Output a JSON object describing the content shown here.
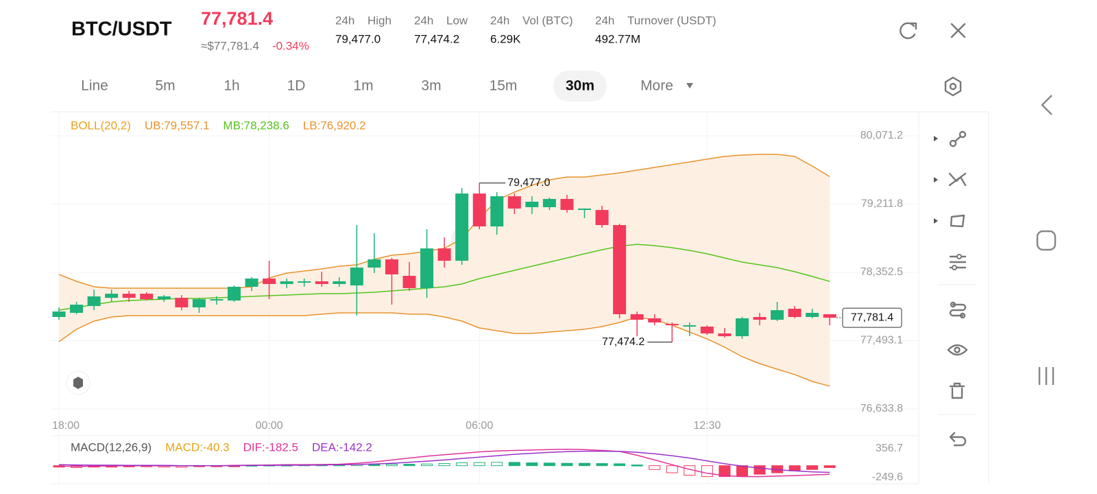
{
  "header": {
    "pair": "BTC/USDT",
    "price": "77,781.4",
    "usd_price": "≈$77,781.4",
    "change": "-0.34%",
    "stats": [
      {
        "period": "24h",
        "name": "High",
        "value": "79,477.0"
      },
      {
        "period": "24h",
        "name": "Low",
        "value": "77,474.2"
      },
      {
        "period": "24h",
        "name": "Vol (BTC)",
        "value": "6.29K"
      },
      {
        "period": "24h",
        "name": "Turnover (USDT)",
        "value": "492.77M"
      }
    ]
  },
  "intervals": [
    {
      "label": "Line",
      "active": false
    },
    {
      "label": "5m",
      "active": false
    },
    {
      "label": "1h",
      "active": false
    },
    {
      "label": "1D",
      "active": false
    },
    {
      "label": "1m",
      "active": false
    },
    {
      "label": "3m",
      "active": false
    },
    {
      "label": "15m",
      "active": false
    },
    {
      "label": "30m",
      "active": true
    },
    {
      "label": "More",
      "active": false
    }
  ],
  "chart_data": [
    {
      "type": "candlestick",
      "indicator": "BOLL(20,2)",
      "watermark": "Gate",
      "up_color": "#1db27a",
      "down_color": "#f23b5c",
      "x": [
        "18:00",
        null,
        null,
        null,
        null,
        null,
        null,
        null,
        null,
        null,
        null,
        null,
        "00:00",
        null,
        null,
        null,
        null,
        null,
        null,
        null,
        null,
        null,
        null,
        null,
        "06:00",
        null,
        null,
        null,
        null,
        null,
        null,
        null,
        null,
        null,
        null,
        null,
        null,
        "12:30",
        null,
        null,
        null,
        null,
        null,
        null,
        null
      ],
      "open": [
        77791,
        77843,
        77929,
        78032,
        78084,
        78084,
        78015,
        78032,
        77912,
        77998,
        77998,
        78171,
        78275,
        78206,
        78223,
        78240,
        78206,
        78188,
        78413,
        78516,
        78309,
        78154,
        78654,
        78499,
        79345,
        78931,
        79311,
        79173,
        79173,
        79277,
        79138,
        79138,
        78948,
        77826,
        77774,
        77704,
        77670,
        77670,
        77584,
        77549,
        77791,
        77756,
        77895,
        77791,
        77826
      ],
      "high": [
        77912,
        77981,
        78136,
        78136,
        78119,
        78102,
        78067,
        78067,
        78032,
        78050,
        78188,
        78292,
        78499,
        78275,
        78275,
        78361,
        78292,
        78948,
        78845,
        78534,
        78482,
        78896,
        78793,
        79414,
        79477,
        79363,
        79345,
        79311,
        79294,
        79328,
        79156,
        79190,
        78966,
        77860,
        77826,
        77722,
        77722,
        77687,
        77653,
        77791,
        77843,
        77981,
        77929,
        77895,
        77826
      ],
      "low": [
        77756,
        77825,
        77877,
        77981,
        77981,
        77998,
        77981,
        77877,
        77843,
        77946,
        77981,
        78119,
        78015,
        78154,
        78171,
        78171,
        78171,
        77808,
        78344,
        77946,
        78119,
        78032,
        78413,
        78447,
        78896,
        78827,
        79086,
        79086,
        79138,
        79104,
        79035,
        78914,
        77774,
        77549,
        77687,
        77474.2,
        77549,
        77566,
        77532,
        77515,
        77687,
        77739,
        77774,
        77774,
        77687
      ],
      "close": [
        77860,
        77946,
        78050,
        78084,
        78032,
        78015,
        78050,
        77912,
        78015,
        78015,
        78171,
        78275,
        78206,
        78240,
        78240,
        78206,
        78240,
        78413,
        78516,
        78327,
        78154,
        78654,
        78499,
        79345,
        78931,
        79311,
        79156,
        79242,
        79277,
        79138,
        79156,
        78948,
        77826,
        77756,
        77722,
        77687,
        77687,
        77584,
        77549,
        77774,
        77756,
        77877,
        77791,
        77843,
        77781.4
      ],
      "series": [
        {
          "name": "UB:79,557.1",
          "color": "#e9922b",
          "values": [
            78327,
            78240,
            78171,
            78154,
            78154,
            78154,
            78154,
            78154,
            78154,
            78154,
            78154,
            78171,
            78283,
            78344,
            78370,
            78396,
            78430,
            78447,
            78517,
            78568,
            78586,
            78620,
            78655,
            78776,
            79035,
            79259,
            79363,
            79449,
            79518,
            79553,
            79553,
            79579,
            79605,
            79639,
            79674,
            79708,
            79743,
            79778,
            79812,
            79829,
            79838,
            79838,
            79812,
            79691,
            79557.1
          ]
        },
        {
          "name": "MB:78,238.6",
          "color": "#52c41a",
          "values": [
            77877,
            77912,
            77946,
            77981,
            77998,
            78007,
            78015,
            78024,
            78024,
            78033,
            78041,
            78050,
            78059,
            78067,
            78076,
            78085,
            78085,
            78093,
            78102,
            78119,
            78136,
            78154,
            78171,
            78206,
            78275,
            78326,
            78378,
            78430,
            78482,
            78534,
            78586,
            78637,
            78681,
            78706,
            78689,
            78663,
            78629,
            78586,
            78534,
            78482,
            78447,
            78413,
            78361,
            78301,
            78238.6
          ]
        },
        {
          "name": "LB:76,920.2",
          "color": "#e9922b",
          "values": [
            77480,
            77636,
            77739,
            77791,
            77808,
            77808,
            77808,
            77808,
            77808,
            77808,
            77808,
            77808,
            77808,
            77808,
            77808,
            77826,
            77843,
            77843,
            77843,
            77843,
            77826,
            77826,
            77791,
            77739,
            77653,
            77618,
            77584,
            77584,
            77601,
            77618,
            77636,
            77670,
            77722,
            77791,
            77756,
            77687,
            77601,
            77515,
            77411,
            77290,
            77204,
            77134,
            77066,
            76979,
            76920.2
          ]
        }
      ],
      "band_fill": "#fdf0e3",
      "high_label": "79,477.0",
      "low_label": "77,474.2",
      "last_label": "77,781.4",
      "ylim": [
        76556,
        80356
      ],
      "yticks": [
        {
          "value": 80071.2,
          "label": "80,071.2"
        },
        {
          "value": 79211.8,
          "label": "79,211.8"
        },
        {
          "value": 78352.5,
          "label": "78,352.5"
        },
        {
          "value": 77493.1,
          "label": "77,493.1"
        },
        {
          "value": 76633.8,
          "label": "76,633.8"
        }
      ],
      "grid": true
    },
    {
      "type": "macd",
      "indicator": "MACD(12,26,9)",
      "up_color": "#1db27a",
      "down_color": "#f23b5c",
      "series": [
        {
          "name": "MACD:-40.3",
          "color": "#e8a317",
          "values": [
            -30,
            -40,
            -30,
            -30,
            -25,
            -20,
            -30,
            -35,
            -20,
            -15,
            -10,
            10,
            15,
            15,
            20,
            20,
            20,
            25,
            25,
            30,
            30,
            35,
            45,
            60,
            65,
            70,
            70,
            60,
            55,
            50,
            50,
            45,
            40,
            15,
            -80,
            -150,
            -200,
            -230,
            -230,
            -220,
            -180,
            -150,
            -110,
            -80,
            -40.3
          ]
        },
        {
          "name": "DIF:-182.5",
          "color": "#e0309a",
          "values": [
            -10,
            -15,
            -10,
            -5,
            0,
            0,
            -5,
            -5,
            0,
            0,
            5,
            10,
            15,
            20,
            20,
            25,
            30,
            50,
            80,
            120,
            160,
            200,
            230,
            260,
            290,
            310,
            320,
            330,
            340,
            345,
            340,
            320,
            300,
            220,
            120,
            20,
            -80,
            -160,
            -210,
            -230,
            -230,
            -220,
            -210,
            -195,
            -182.5
          ]
        },
        {
          "name": "DEA:-142.2",
          "color": "#9b30c8",
          "values": [
            20,
            15,
            10,
            10,
            5,
            5,
            5,
            0,
            0,
            0,
            0,
            5,
            5,
            10,
            10,
            15,
            20,
            25,
            35,
            50,
            70,
            95,
            120,
            150,
            180,
            210,
            240,
            260,
            280,
            295,
            305,
            305,
            300,
            280,
            250,
            210,
            160,
            100,
            40,
            -10,
            -50,
            -85,
            -110,
            -130,
            -142.2
          ]
        }
      ],
      "ylim": [
        -380,
        559
      ],
      "yticks": [
        356.7,
        -249.6
      ]
    }
  ]
}
